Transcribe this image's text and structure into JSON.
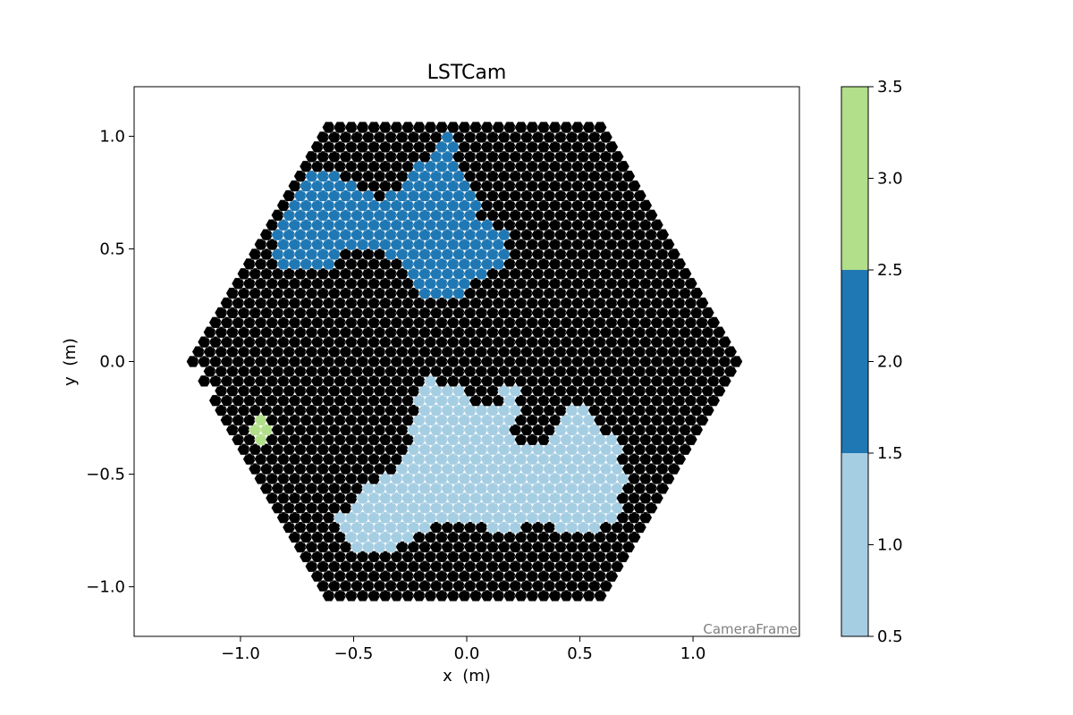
{
  "chart_data": {
    "type": "heatmap",
    "title": "LSTCam",
    "xlabel": "x  (m)",
    "ylabel": "y  (m)",
    "xlim": [
      -1.47,
      1.47
    ],
    "ylim": [
      -1.22,
      1.22
    ],
    "x_ticks": [
      {
        "value": -1.0,
        "label": "−1.0"
      },
      {
        "value": -0.5,
        "label": "−0.5"
      },
      {
        "value": 0.0,
        "label": "0.0"
      },
      {
        "value": 0.5,
        "label": "0.5"
      },
      {
        "value": 1.0,
        "label": "1.0"
      }
    ],
    "y_ticks": [
      {
        "value": 1.0,
        "label": "1.0"
      },
      {
        "value": 0.5,
        "label": "0.5"
      },
      {
        "value": 0.0,
        "label": "0.0"
      },
      {
        "value": -0.5,
        "label": "−0.5"
      },
      {
        "value": -1.0,
        "label": "−1.0"
      }
    ],
    "frame_label": "CameraFrame",
    "grid": false,
    "camera": {
      "shape": "hexagonal pixel grid",
      "circumradius_m": 1.21,
      "pixel_pitch_m": 0.05,
      "background_value": 0,
      "background_color": "#000000",
      "pixel_edge_color": "#ffffff"
    },
    "regions": [
      {
        "value": 1,
        "color": "#a6cee3",
        "polygon": [
          [
            -0.15,
            -0.08
          ],
          [
            -0.05,
            -0.11
          ],
          [
            0.0,
            -0.16
          ],
          [
            0.08,
            -0.19
          ],
          [
            0.13,
            -0.22
          ],
          [
            0.16,
            -0.12
          ],
          [
            0.22,
            -0.1
          ],
          [
            0.22,
            -0.23
          ],
          [
            0.18,
            -0.32
          ],
          [
            0.24,
            -0.37
          ],
          [
            0.38,
            -0.34
          ],
          [
            0.45,
            -0.22
          ],
          [
            0.53,
            -0.2
          ],
          [
            0.57,
            -0.28
          ],
          [
            0.66,
            -0.34
          ],
          [
            0.7,
            -0.55
          ],
          [
            0.67,
            -0.68
          ],
          [
            0.6,
            -0.72
          ],
          [
            0.56,
            -0.77
          ],
          [
            0.43,
            -0.74
          ],
          [
            0.3,
            -0.72
          ],
          [
            0.18,
            -0.75
          ],
          [
            0.0,
            -0.72
          ],
          [
            -0.15,
            -0.72
          ],
          [
            -0.25,
            -0.8
          ],
          [
            -0.38,
            -0.84
          ],
          [
            -0.47,
            -0.86
          ],
          [
            -0.53,
            -0.8
          ],
          [
            -0.57,
            -0.7
          ],
          [
            -0.5,
            -0.6
          ],
          [
            -0.42,
            -0.55
          ],
          [
            -0.33,
            -0.48
          ],
          [
            -0.26,
            -0.36
          ],
          [
            -0.23,
            -0.2
          ],
          [
            -0.22,
            -0.12
          ]
        ]
      },
      {
        "value": 2,
        "color": "#1f78b4",
        "polygon": [
          [
            -0.89,
            0.44
          ],
          [
            -0.84,
            0.56
          ],
          [
            -0.78,
            0.68
          ],
          [
            -0.72,
            0.8
          ],
          [
            -0.67,
            0.85
          ],
          [
            -0.55,
            0.83
          ],
          [
            -0.48,
            0.76
          ],
          [
            -0.38,
            0.72
          ],
          [
            -0.3,
            0.78
          ],
          [
            -0.22,
            0.86
          ],
          [
            -0.15,
            0.92
          ],
          [
            -0.11,
            1.02
          ],
          [
            -0.04,
            1.0
          ],
          [
            -0.04,
            0.88
          ],
          [
            0.0,
            0.78
          ],
          [
            0.05,
            0.72
          ],
          [
            0.05,
            0.62
          ],
          [
            0.18,
            0.58
          ],
          [
            0.19,
            0.47
          ],
          [
            0.16,
            0.42
          ],
          [
            0.06,
            0.38
          ],
          [
            0.0,
            0.3
          ],
          [
            -0.12,
            0.28
          ],
          [
            -0.25,
            0.32
          ],
          [
            -0.28,
            0.45
          ],
          [
            -0.38,
            0.48
          ],
          [
            -0.45,
            0.52
          ],
          [
            -0.55,
            0.47
          ],
          [
            -0.63,
            0.42
          ],
          [
            -0.72,
            0.4
          ],
          [
            -0.8,
            0.42
          ]
        ]
      },
      {
        "value": 3,
        "color": "#b2df8a",
        "polygon": [
          [
            -0.9,
            -0.25
          ],
          [
            -0.88,
            -0.32
          ],
          [
            -0.9,
            -0.36
          ],
          [
            -0.94,
            -0.33
          ],
          [
            -0.95,
            -0.27
          ]
        ]
      }
    ],
    "colorbar": {
      "ticks": [
        "0.5",
        "1.0",
        "1.5",
        "2.0",
        "2.5",
        "3.0",
        "3.5"
      ],
      "range": [
        0.5,
        3.5
      ],
      "segments": [
        {
          "from": 0.5,
          "to": 1.5,
          "color": "#a6cee3"
        },
        {
          "from": 1.5,
          "to": 2.5,
          "color": "#1f78b4"
        },
        {
          "from": 2.5,
          "to": 3.5,
          "color": "#b2df8a"
        }
      ]
    }
  }
}
